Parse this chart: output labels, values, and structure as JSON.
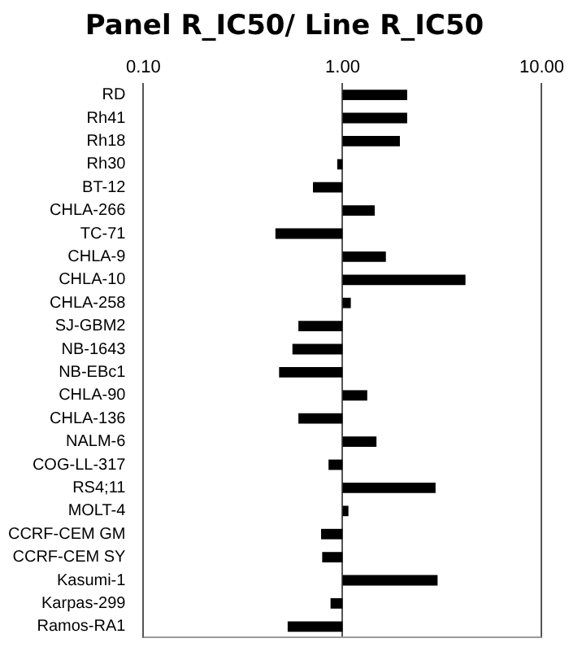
{
  "chart_data": {
    "type": "bar",
    "orientation": "horizontal",
    "title": "Panel R_IC50/ Line R_IC50",
    "categories": [
      "RD",
      "Rh41",
      "Rh18",
      "Rh30",
      "BT-12",
      "CHLA-266",
      "TC-71",
      "CHLA-9",
      "CHLA-10",
      "CHLA-258",
      "SJ-GBM2",
      "NB-1643",
      "NB-EBc1",
      "CHLA-90",
      "CHLA-136",
      "NALM-6",
      "COG-LL-317",
      "RS4;11",
      "MOLT-4",
      "CCRF-CEM GM",
      "CCRF-CEM SY",
      "Kasumi-1",
      "Karpas-299",
      "Ramos-RA1"
    ],
    "base": [
      1,
      1,
      1,
      1,
      1,
      1,
      1,
      1,
      1,
      1,
      1,
      1,
      1,
      1,
      1,
      1,
      1,
      1,
      1,
      1,
      1,
      1,
      1,
      1
    ],
    "values": [
      1.11,
      1.11,
      0.94,
      -0.06,
      -0.29,
      0.45,
      -0.54,
      0.65,
      3.14,
      0.1,
      -0.4,
      -0.44,
      -0.52,
      0.33,
      -0.4,
      0.48,
      -0.15,
      1.93,
      0.07,
      -0.22,
      -0.21,
      2.0,
      -0.13,
      -0.47
    ],
    "color": "#000000",
    "log": "x",
    "xlim": [
      0.1,
      10
    ],
    "xticks": [
      {
        "value": 0.1,
        "label": "0.10"
      },
      {
        "value": 1,
        "label": "1.00"
      },
      {
        "value": 10,
        "label": "10.00"
      }
    ],
    "grid": "x",
    "legend": false
  }
}
